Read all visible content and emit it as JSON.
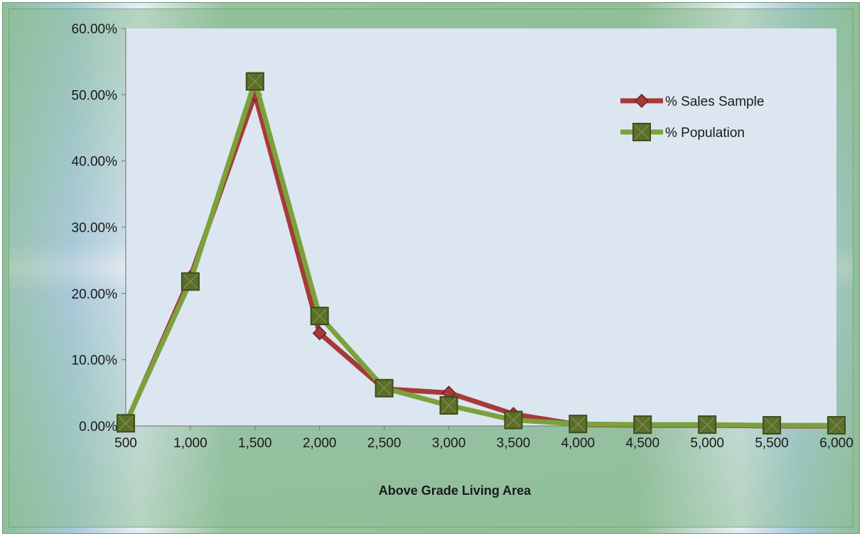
{
  "chart_data": {
    "type": "line",
    "title": "",
    "xlabel": "Above Grade Living Area",
    "ylabel": "",
    "x": [
      500,
      1000,
      1500,
      2000,
      2500,
      3000,
      3500,
      4000,
      4500,
      5000,
      5500,
      6000
    ],
    "x_tick_labels": [
      "500",
      "1,000",
      "1,500",
      "2,000",
      "2,500",
      "3,000",
      "3,500",
      "4,000",
      "4,500",
      "5,000",
      "5,500",
      "6,000"
    ],
    "ylim": [
      0,
      60
    ],
    "y_ticks": [
      0,
      10,
      20,
      30,
      40,
      50,
      60
    ],
    "y_tick_labels": [
      "0.00%",
      "10.00%",
      "20.00%",
      "30.00%",
      "40.00%",
      "50.00%",
      "60.00%"
    ],
    "grid": false,
    "legend_position": "top-right",
    "series": [
      {
        "name": "% Sales Sample",
        "color": "#a63a3a",
        "marker": "diamond",
        "values": [
          0.3,
          22.5,
          50.0,
          14.0,
          5.6,
          5.0,
          1.8,
          0.2,
          0.1,
          0.1,
          0.0,
          0.0
        ]
      },
      {
        "name": "% Population",
        "color": "#7aa23c",
        "marker": "square",
        "values": [
          0.4,
          21.8,
          52.0,
          16.6,
          5.7,
          3.1,
          0.9,
          0.3,
          0.2,
          0.2,
          0.1,
          0.1
        ]
      }
    ]
  },
  "colors": {
    "plot_background": "#dce6f0",
    "axis_line": "#808080",
    "square_marker_fill": "#5b6e2a",
    "square_marker_edge": "#3e4d1c"
  }
}
